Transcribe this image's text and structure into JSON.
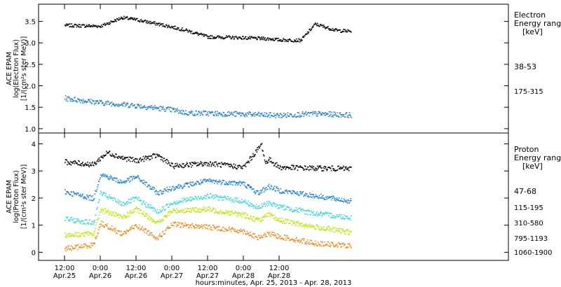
{
  "chart_data": [
    {
      "type": "scatter",
      "panel": "electron",
      "ylabel": [
        "ACE EPAM",
        "log(Electron Flux)",
        "[1/(cm²s ster MeV)]"
      ],
      "ylim": [
        0.9,
        3.9
      ],
      "yticks": [
        "1.0",
        "1.5",
        "2.0",
        "2.5",
        "3.0",
        "3.5"
      ],
      "legend_title": [
        "Electron",
        "Energy ranges",
        "[keV]"
      ],
      "series": [
        {
          "name": "38-53",
          "color": "#000000",
          "x": [
            0.0,
            0.5,
            0.8,
            1.0,
            1.3,
            1.5,
            1.7,
            2.0,
            2.5,
            2.9,
            3.0,
            3.3,
            3.5,
            3.8,
            4.0
          ],
          "y": [
            3.42,
            3.4,
            3.6,
            3.55,
            3.45,
            3.38,
            3.3,
            3.15,
            3.13,
            3.1,
            3.08,
            3.07,
            3.45,
            3.3,
            3.28
          ]
        },
        {
          "name": "175-315",
          "color": "#1e7fd0",
          "x": [
            0.0,
            0.5,
            1.0,
            1.5,
            1.7,
            2.0,
            2.5,
            3.0,
            3.5,
            4.0
          ],
          "y": [
            1.72,
            1.62,
            1.55,
            1.45,
            1.38,
            1.37,
            1.35,
            1.32,
            1.36,
            1.33
          ]
        }
      ]
    },
    {
      "type": "scatter",
      "panel": "proton",
      "ylabel": [
        "ACE EPAM",
        "log(Proton Flux)",
        "[1/(cm²s ster MeV)]"
      ],
      "ylim": [
        -0.3,
        4.4
      ],
      "yticks": [
        "0",
        "1",
        "2",
        "3",
        "4"
      ],
      "legend_title": [
        "Proton",
        "Energy ranges",
        "[keV]"
      ],
      "series": [
        {
          "name": "47-68",
          "color": "#000000",
          "x": [
            0.0,
            0.4,
            0.5,
            0.6,
            0.8,
            1.0,
            1.3,
            1.5,
            2.0,
            2.5,
            2.75,
            2.8,
            2.85,
            3.0,
            3.5,
            4.0
          ],
          "y": [
            3.35,
            3.25,
            3.5,
            3.7,
            3.5,
            3.4,
            3.6,
            3.2,
            3.3,
            3.15,
            4.0,
            3.3,
            3.45,
            3.15,
            3.12,
            3.1
          ]
        },
        {
          "name": "115-195",
          "color": "#1e7fd0",
          "x": [
            0.0,
            0.4,
            0.5,
            0.8,
            1.0,
            1.3,
            1.5,
            2.0,
            2.5,
            2.7,
            2.85,
            3.0,
            3.5,
            4.0
          ],
          "y": [
            2.25,
            2.0,
            2.9,
            2.6,
            2.8,
            2.2,
            2.4,
            2.65,
            2.55,
            2.2,
            2.45,
            2.3,
            2.1,
            1.9
          ]
        },
        {
          "name": "310-580",
          "color": "#3ed8d8",
          "x": [
            0.0,
            0.4,
            0.5,
            0.8,
            1.0,
            1.3,
            1.5,
            2.0,
            2.5,
            2.7,
            2.85,
            3.0,
            3.5,
            4.0
          ],
          "y": [
            1.25,
            1.1,
            2.2,
            1.8,
            2.0,
            1.5,
            1.85,
            2.1,
            1.9,
            1.65,
            1.85,
            1.7,
            1.45,
            1.3
          ]
        },
        {
          "name": "795-1193",
          "color": "#b8e800",
          "x": [
            0.0,
            0.4,
            0.5,
            0.8,
            1.0,
            1.3,
            1.5,
            2.0,
            2.5,
            2.7,
            2.85,
            3.0,
            3.5,
            4.0
          ],
          "y": [
            0.65,
            0.7,
            1.6,
            1.3,
            1.6,
            1.1,
            1.55,
            1.6,
            1.4,
            1.2,
            1.4,
            1.2,
            0.95,
            0.75
          ]
        },
        {
          "name": "1060-1900",
          "color": "#f08a1a",
          "x": [
            0.0,
            0.4,
            0.5,
            0.8,
            1.0,
            1.3,
            1.5,
            2.0,
            2.5,
            2.7,
            2.85,
            3.0,
            3.5,
            4.0
          ],
          "y": [
            0.15,
            0.3,
            1.1,
            0.7,
            1.0,
            0.55,
            1.05,
            0.95,
            0.8,
            0.55,
            0.7,
            0.6,
            0.35,
            0.25
          ]
        }
      ]
    }
  ],
  "x_axis": {
    "xlabel": "hours:minutes, Apr. 25, 2013 - Apr. 28, 2013",
    "ticks": [
      {
        "x": 0.0,
        "time": "12:00",
        "date": "Apr.25"
      },
      {
        "x": 0.5,
        "time": "0:00",
        "date": "Apr.26"
      },
      {
        "x": 1.0,
        "time": "12:00",
        "date": "Apr.26"
      },
      {
        "x": 1.5,
        "time": "0:00",
        "date": "Apr.27"
      },
      {
        "x": 2.0,
        "time": "12:00",
        "date": "Apr.27"
      },
      {
        "x": 2.5,
        "time": "0:00",
        "date": "Apr.28"
      },
      {
        "x": 3.0,
        "time": "12:00",
        "date": "Apr.28"
      }
    ]
  }
}
